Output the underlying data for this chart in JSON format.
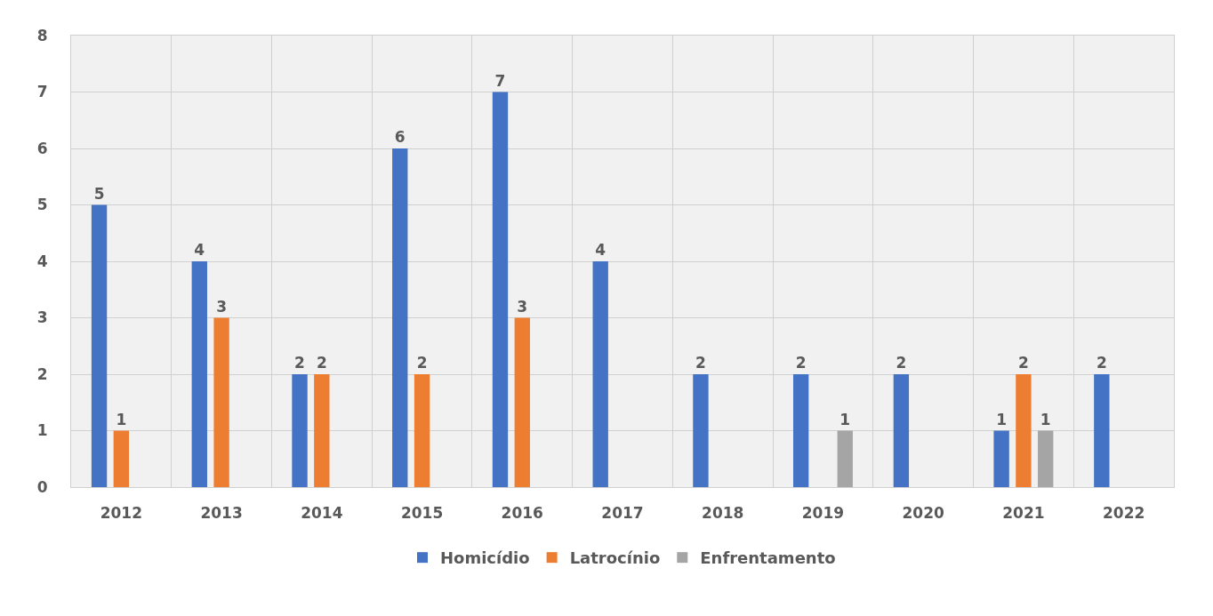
{
  "chart_data": {
    "type": "bar",
    "categories": [
      "2012",
      "2013",
      "2014",
      "2015",
      "2016",
      "2017",
      "2018",
      "2019",
      "2020",
      "2021",
      "2022"
    ],
    "series": [
      {
        "name": "Homicídio",
        "color": "#4472c4",
        "values": [
          5,
          4,
          2,
          6,
          7,
          4,
          2,
          2,
          2,
          1,
          2
        ]
      },
      {
        "name": "Latrocínio",
        "color": "#ed7d31",
        "values": [
          1,
          3,
          2,
          2,
          3,
          null,
          null,
          null,
          null,
          2,
          null
        ]
      },
      {
        "name": "Enfrentamento",
        "color": "#a5a5a5",
        "values": [
          null,
          null,
          null,
          null,
          null,
          null,
          null,
          1,
          null,
          1,
          null
        ]
      }
    ],
    "ylim": [
      0,
      8
    ],
    "yticks": [
      0,
      1,
      2,
      3,
      4,
      5,
      6,
      7,
      8
    ],
    "grid": true,
    "legend": "bottom",
    "data_labels": true
  }
}
